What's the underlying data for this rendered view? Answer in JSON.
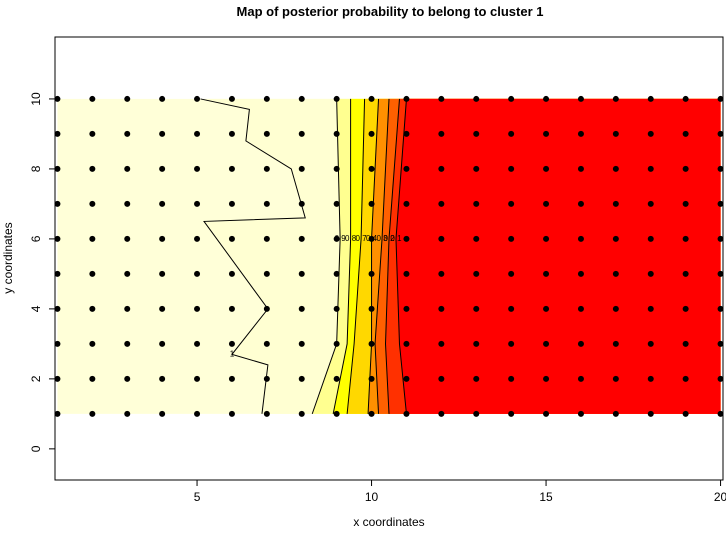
{
  "chart_data": {
    "type": "contour",
    "title": "Map of posterior probability to belong to cluster  1",
    "x_label": "x coordinates",
    "y_label": "y coordinates",
    "xlim": [
      0.93,
      20.07
    ],
    "ylim": [
      -0.89,
      11.77
    ],
    "xticks": [
      5,
      10,
      15,
      20
    ],
    "yticks": [
      0,
      2,
      4,
      6,
      8,
      10
    ],
    "field_x": [
      1,
      20
    ],
    "field_y": [
      1,
      10
    ],
    "fill_above": "#FFFFD8",
    "contours": [
      {
        "level": 1,
        "fill": "#FFFFD2",
        "x": [
          6.86,
          7.03,
          6.0,
          7.03,
          5.2,
          8.1,
          7.7,
          6.4,
          6.5,
          5.1
        ],
        "y": [
          1,
          2.4,
          2.7,
          4,
          6.5,
          6.6,
          8,
          8.8,
          9.7,
          10
        ]
      },
      {
        "level": 0.9,
        "fill": "#FFFF90",
        "x": [
          8.3,
          9.0,
          9.1,
          9.0
        ],
        "y": [
          1,
          3,
          6,
          10
        ]
      },
      {
        "level": 0.8,
        "fill": "#FFFF00",
        "x": [
          8.9,
          9.3,
          9.4,
          9.4
        ],
        "y": [
          1,
          3,
          6,
          10
        ]
      },
      {
        "level": 0.7,
        "fill": "#FFD800",
        "x": [
          9.3,
          9.5,
          9.7,
          9.8
        ],
        "y": [
          1,
          3,
          6,
          10
        ]
      },
      {
        "level": 0.4,
        "fill": "#FF9000",
        "x": [
          9.9,
          10.0,
          10.0,
          10.2
        ],
        "y": [
          1,
          3,
          6,
          10
        ]
      },
      {
        "level": 0.3,
        "fill": "#FF6000",
        "x": [
          10.2,
          10.1,
          10.3,
          10.5
        ],
        "y": [
          1,
          3,
          6,
          10
        ]
      },
      {
        "level": 0.2,
        "fill": "#FF3000",
        "x": [
          10.5,
          10.4,
          10.5,
          10.8
        ],
        "y": [
          1,
          3,
          6,
          10
        ]
      },
      {
        "level": 0.1,
        "fill": "#FF0000",
        "x": [
          11.0,
          10.8,
          10.7,
          11.0
        ],
        "y": [
          1,
          3,
          6,
          10
        ]
      }
    ],
    "points": {
      "x": [
        1,
        2,
        3,
        4,
        5,
        6,
        7,
        8,
        9,
        10,
        11,
        12,
        13,
        14,
        15,
        16,
        17,
        18,
        19,
        20
      ],
      "y": [
        1,
        2,
        3,
        4,
        5,
        6,
        7,
        8,
        9,
        10
      ],
      "color": "#000000"
    }
  }
}
